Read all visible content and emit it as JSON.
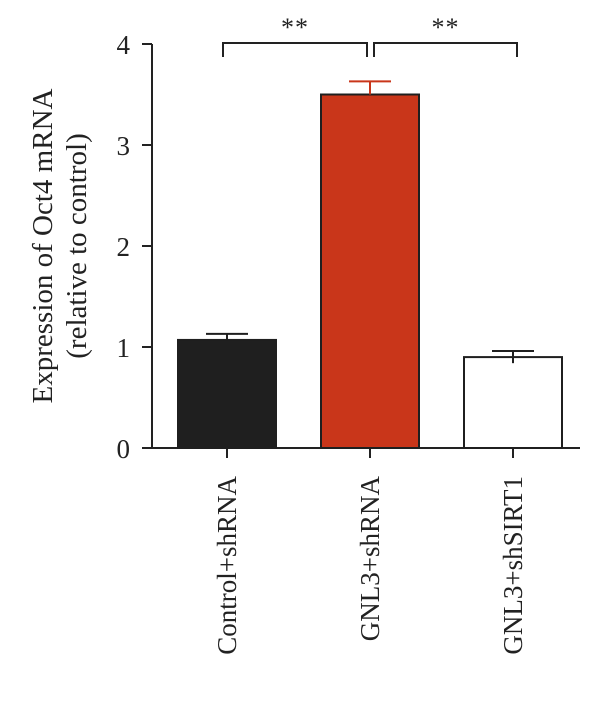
{
  "chart_data": {
    "type": "bar",
    "categories": [
      "Control+shRNA",
      "GNL3+shRNA",
      "GNL3+shSIRT1"
    ],
    "values": [
      1.07,
      3.5,
      0.9
    ],
    "errors": [
      0.06,
      0.13,
      0.06
    ],
    "colors": [
      "#1f1f1f",
      "#c9361a",
      "#ffffff"
    ],
    "ylabel_lines": [
      "Expression of Oct4 mRNA",
      "(relative to control)"
    ],
    "ylim": [
      0,
      4
    ],
    "yticks": [
      "0",
      "1",
      "2",
      "3",
      "4"
    ],
    "grid": false,
    "significance": [
      {
        "from": 0,
        "to": 1,
        "label": "**"
      },
      {
        "from": 1,
        "to": 2,
        "label": "**"
      }
    ]
  }
}
